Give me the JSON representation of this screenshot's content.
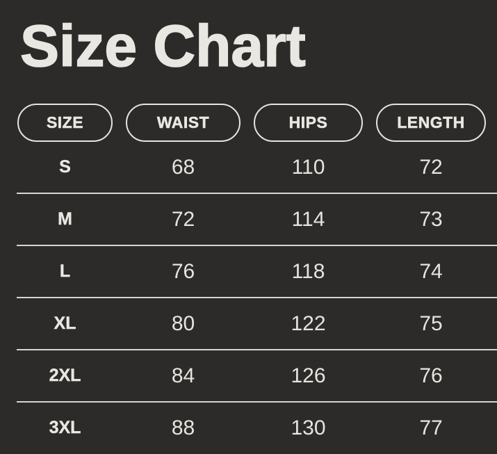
{
  "page": {
    "title": "Size Chart"
  },
  "size_table": {
    "headers": [
      "SIZE",
      "WAIST",
      "HIPS",
      "LENGTH"
    ],
    "rows": [
      {
        "size": "S",
        "waist": "68",
        "hips": "110",
        "length": "72"
      },
      {
        "size": "M",
        "waist": "72",
        "hips": "114",
        "length": "73"
      },
      {
        "size": "L",
        "waist": "76",
        "hips": "118",
        "length": "74"
      },
      {
        "size": "XL",
        "waist": "80",
        "hips": "122",
        "length": "75"
      },
      {
        "size": "2XL",
        "waist": "84",
        "hips": "126",
        "length": "76"
      },
      {
        "size": "3XL",
        "waist": "88",
        "hips": "130",
        "length": "77"
      }
    ]
  },
  "chart_data": {
    "type": "table",
    "title": "Size Chart",
    "columns": [
      "SIZE",
      "WAIST",
      "HIPS",
      "LENGTH"
    ],
    "rows": [
      [
        "S",
        68,
        110,
        72
      ],
      [
        "M",
        72,
        114,
        73
      ],
      [
        "L",
        76,
        118,
        74
      ],
      [
        "XL",
        80,
        122,
        75
      ],
      [
        "2XL",
        84,
        126,
        76
      ],
      [
        "3XL",
        88,
        130,
        77
      ]
    ]
  },
  "colors": {
    "background": "#2c2b29",
    "text": "#e9e7e1",
    "divider": "#d8d6d0",
    "pill_border": "#e6e4de"
  }
}
